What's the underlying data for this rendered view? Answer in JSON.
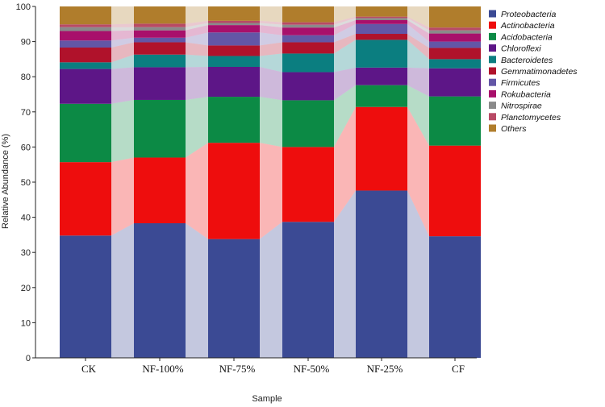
{
  "chart_data": {
    "type": "bar",
    "stacked": true,
    "title": "",
    "xlabel": "Sample",
    "ylabel": "Relative Abundance (%)",
    "ylim": [
      0,
      100
    ],
    "yticks": [
      0,
      10,
      20,
      30,
      40,
      50,
      60,
      70,
      80,
      90,
      100
    ],
    "legend_position": "right",
    "categories": [
      "CK",
      "NF-100%",
      "NF-75%",
      "NF-50%",
      "NF-25%",
      "CF"
    ],
    "series": [
      {
        "name": "Proteobacteria",
        "color": "#3b4a94",
        "values": [
          34.8,
          38.3,
          33.8,
          38.7,
          47.6,
          34.6
        ]
      },
      {
        "name": "Actinobacteria",
        "color": "#ee0d0d",
        "values": [
          20.9,
          18.7,
          27.4,
          21.3,
          23.8,
          25.8
        ]
      },
      {
        "name": "Acidobacteria",
        "color": "#0c8a45",
        "values": [
          16.6,
          16.4,
          13.1,
          13.3,
          6.2,
          14.0
        ]
      },
      {
        "name": "Chloroflexi",
        "color": "#5d1687",
        "values": [
          9.9,
          9.3,
          8.5,
          8.0,
          5.0,
          8.0
        ]
      },
      {
        "name": "Bacteroidetes",
        "color": "#0b7e80",
        "values": [
          1.9,
          3.6,
          3.1,
          5.3,
          7.9,
          2.6
        ]
      },
      {
        "name": "Gemmatimonadetes",
        "color": "#b0122b",
        "values": [
          4.2,
          3.5,
          3.0,
          3.2,
          1.7,
          3.2
        ]
      },
      {
        "name": "Firmicutes",
        "color": "#6356a6",
        "values": [
          2.0,
          1.3,
          3.7,
          2.0,
          2.8,
          1.8
        ]
      },
      {
        "name": "Rokubacteria",
        "color": "#a8106b",
        "values": [
          2.7,
          2.1,
          2.1,
          2.2,
          1.1,
          2.3
        ]
      },
      {
        "name": "Nitrospirae",
        "color": "#8a8a8a",
        "values": [
          1.1,
          0.9,
          0.6,
          0.8,
          0.6,
          0.9
        ]
      },
      {
        "name": "Planctomycetes",
        "color": "#b84a65",
        "values": [
          0.8,
          1.0,
          0.6,
          0.7,
          0.4,
          0.8
        ]
      },
      {
        "name": "Others",
        "color": "#b07d2c",
        "values": [
          5.1,
          4.9,
          4.1,
          4.5,
          2.9,
          6.0
        ]
      }
    ]
  }
}
